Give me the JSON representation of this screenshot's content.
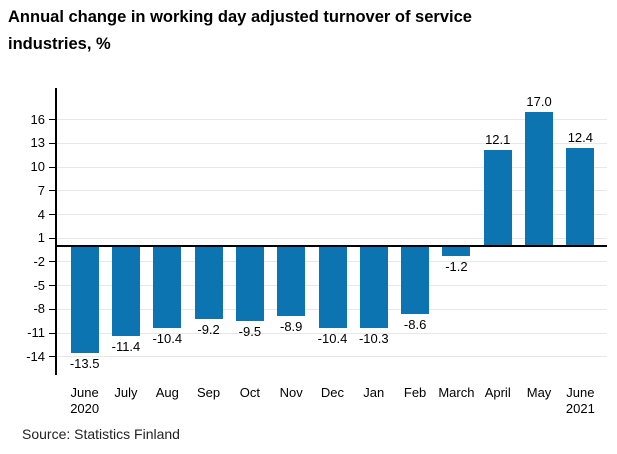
{
  "page": {
    "title": "Annual change in working day adjusted turnover of service industries, %",
    "source": "Source: Statistics Finland"
  },
  "chart_data": {
    "type": "bar",
    "title": "Annual change in working day adjusted turnover of service industries, %",
    "categories": [
      "June\n2020",
      "July",
      "Aug",
      "Sep",
      "Oct",
      "Nov",
      "Dec",
      "Jan",
      "Feb",
      "March",
      "April",
      "May",
      "June\n2021"
    ],
    "values": [
      -13.5,
      -11.4,
      -10.4,
      -9.2,
      -9.5,
      -8.9,
      -10.4,
      -10.3,
      -8.6,
      -1.2,
      12.1,
      17.0,
      12.4
    ],
    "value_labels": [
      "-13.5",
      "-11.4",
      "-10.4",
      "-9.2",
      "-9.5",
      "-8.9",
      "-10.4",
      "-10.3",
      "-8.6",
      "-1.2",
      "12.1",
      "17.0",
      "12.4"
    ],
    "xlabel": "",
    "ylabel": "",
    "yticks": [
      16,
      13,
      10,
      7,
      4,
      1,
      -2,
      -5,
      -8,
      -11,
      -14
    ],
    "ylim": [
      -16.3,
      20
    ],
    "grid": true,
    "legend": false,
    "bar_color": "#0b74b1",
    "axis_color": "#000000",
    "gridline_color": "#e7e7e7",
    "source": "Source: Statistics Finland"
  }
}
